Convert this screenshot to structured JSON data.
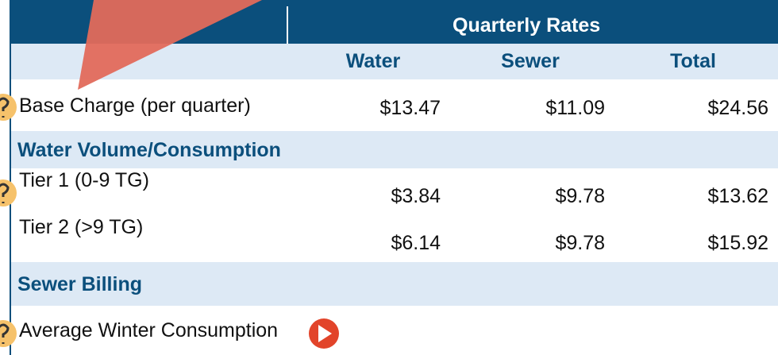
{
  "table": {
    "header": {
      "group": "Quarterly Rates",
      "columns": [
        "Water",
        "Sewer",
        "Total"
      ]
    },
    "rows": [
      {
        "label": "Base Charge (per quarter)",
        "cells": [
          "$13.47",
          "$11.09",
          "$24.56"
        ]
      },
      {
        "section": "Water Volume/Consumption"
      },
      {
        "label": "Tier 1 (0-9 TG)",
        "cells": [
          "$3.84",
          "$9.78",
          "$13.62"
        ]
      },
      {
        "label": "Tier 2 (>9 TG)",
        "cells": [
          "$6.14",
          "$9.78",
          "$15.92"
        ]
      },
      {
        "section": "Sewer Billing"
      },
      {
        "label": "Average Winter Consumption",
        "cells": []
      }
    ]
  }
}
